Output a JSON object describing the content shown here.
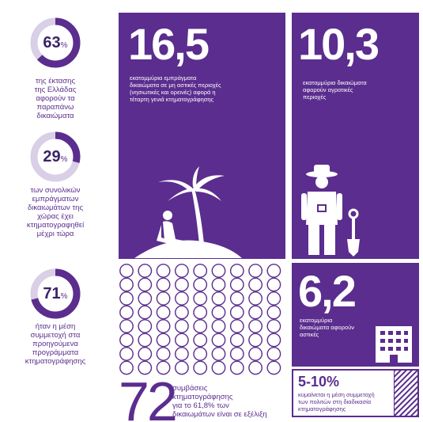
{
  "stats": [
    {
      "value": "63",
      "unit": "%",
      "fraction": 0.63,
      "text": [
        "της έκτασης",
        "της Ελλάδας",
        "αφορούν τα",
        "παραπάνω",
        "δικαιώματα"
      ]
    },
    {
      "value": "29",
      "unit": "%",
      "fraction": 0.29,
      "text": [
        "των συνολικών",
        "εμπράγματων",
        "δικαιωμάτων της",
        "χώρας έχει",
        "κτηματογραφηθεί",
        "μέχρι τώρα"
      ]
    },
    {
      "value": "71",
      "unit": "%",
      "fraction": 0.71,
      "text": [
        "ήταν η μέση",
        "συμμετοχή στα",
        "προηγούμενα",
        "προγράμματα",
        "κτηματογράφησης"
      ]
    }
  ],
  "panels": {
    "urban": {
      "value": "16,5",
      "desc": [
        "εκατομμύρια εμπράγματα",
        "δικαιώματα σε μη αστικές περιοχές",
        "(νησιωτικές και ορεινές) αφορά η",
        "τέταρτη γενιά κτηματογράφησης"
      ]
    },
    "rural": {
      "value": "10,3",
      "desc": [
        "εκατομμύρια δικαιώματα",
        "αφορούν αγροτικές",
        "περιοχές"
      ]
    },
    "city": {
      "value": "6,2",
      "desc": [
        "εκατομμύρια",
        "δικαιώματα αφορούν",
        "αστικές"
      ]
    }
  },
  "contracts": {
    "value": "72",
    "text": [
      "συμβάσεις",
      "κτηματογράφησης",
      "για το 61,8% των",
      "δικαιωμάτων είναι σε εξέλιξη"
    ],
    "count": 72
  },
  "range": {
    "value": "5-10%",
    "desc": [
      "κυμαίνεται η μέση συμμετοχή",
      "των πολιτών στη διαδικασία",
      "κτηματογράφησης"
    ]
  },
  "colors": {
    "purple": "#5b2d8e",
    "dark": "#3a2466",
    "ring_bg": "#d9cfe6"
  }
}
